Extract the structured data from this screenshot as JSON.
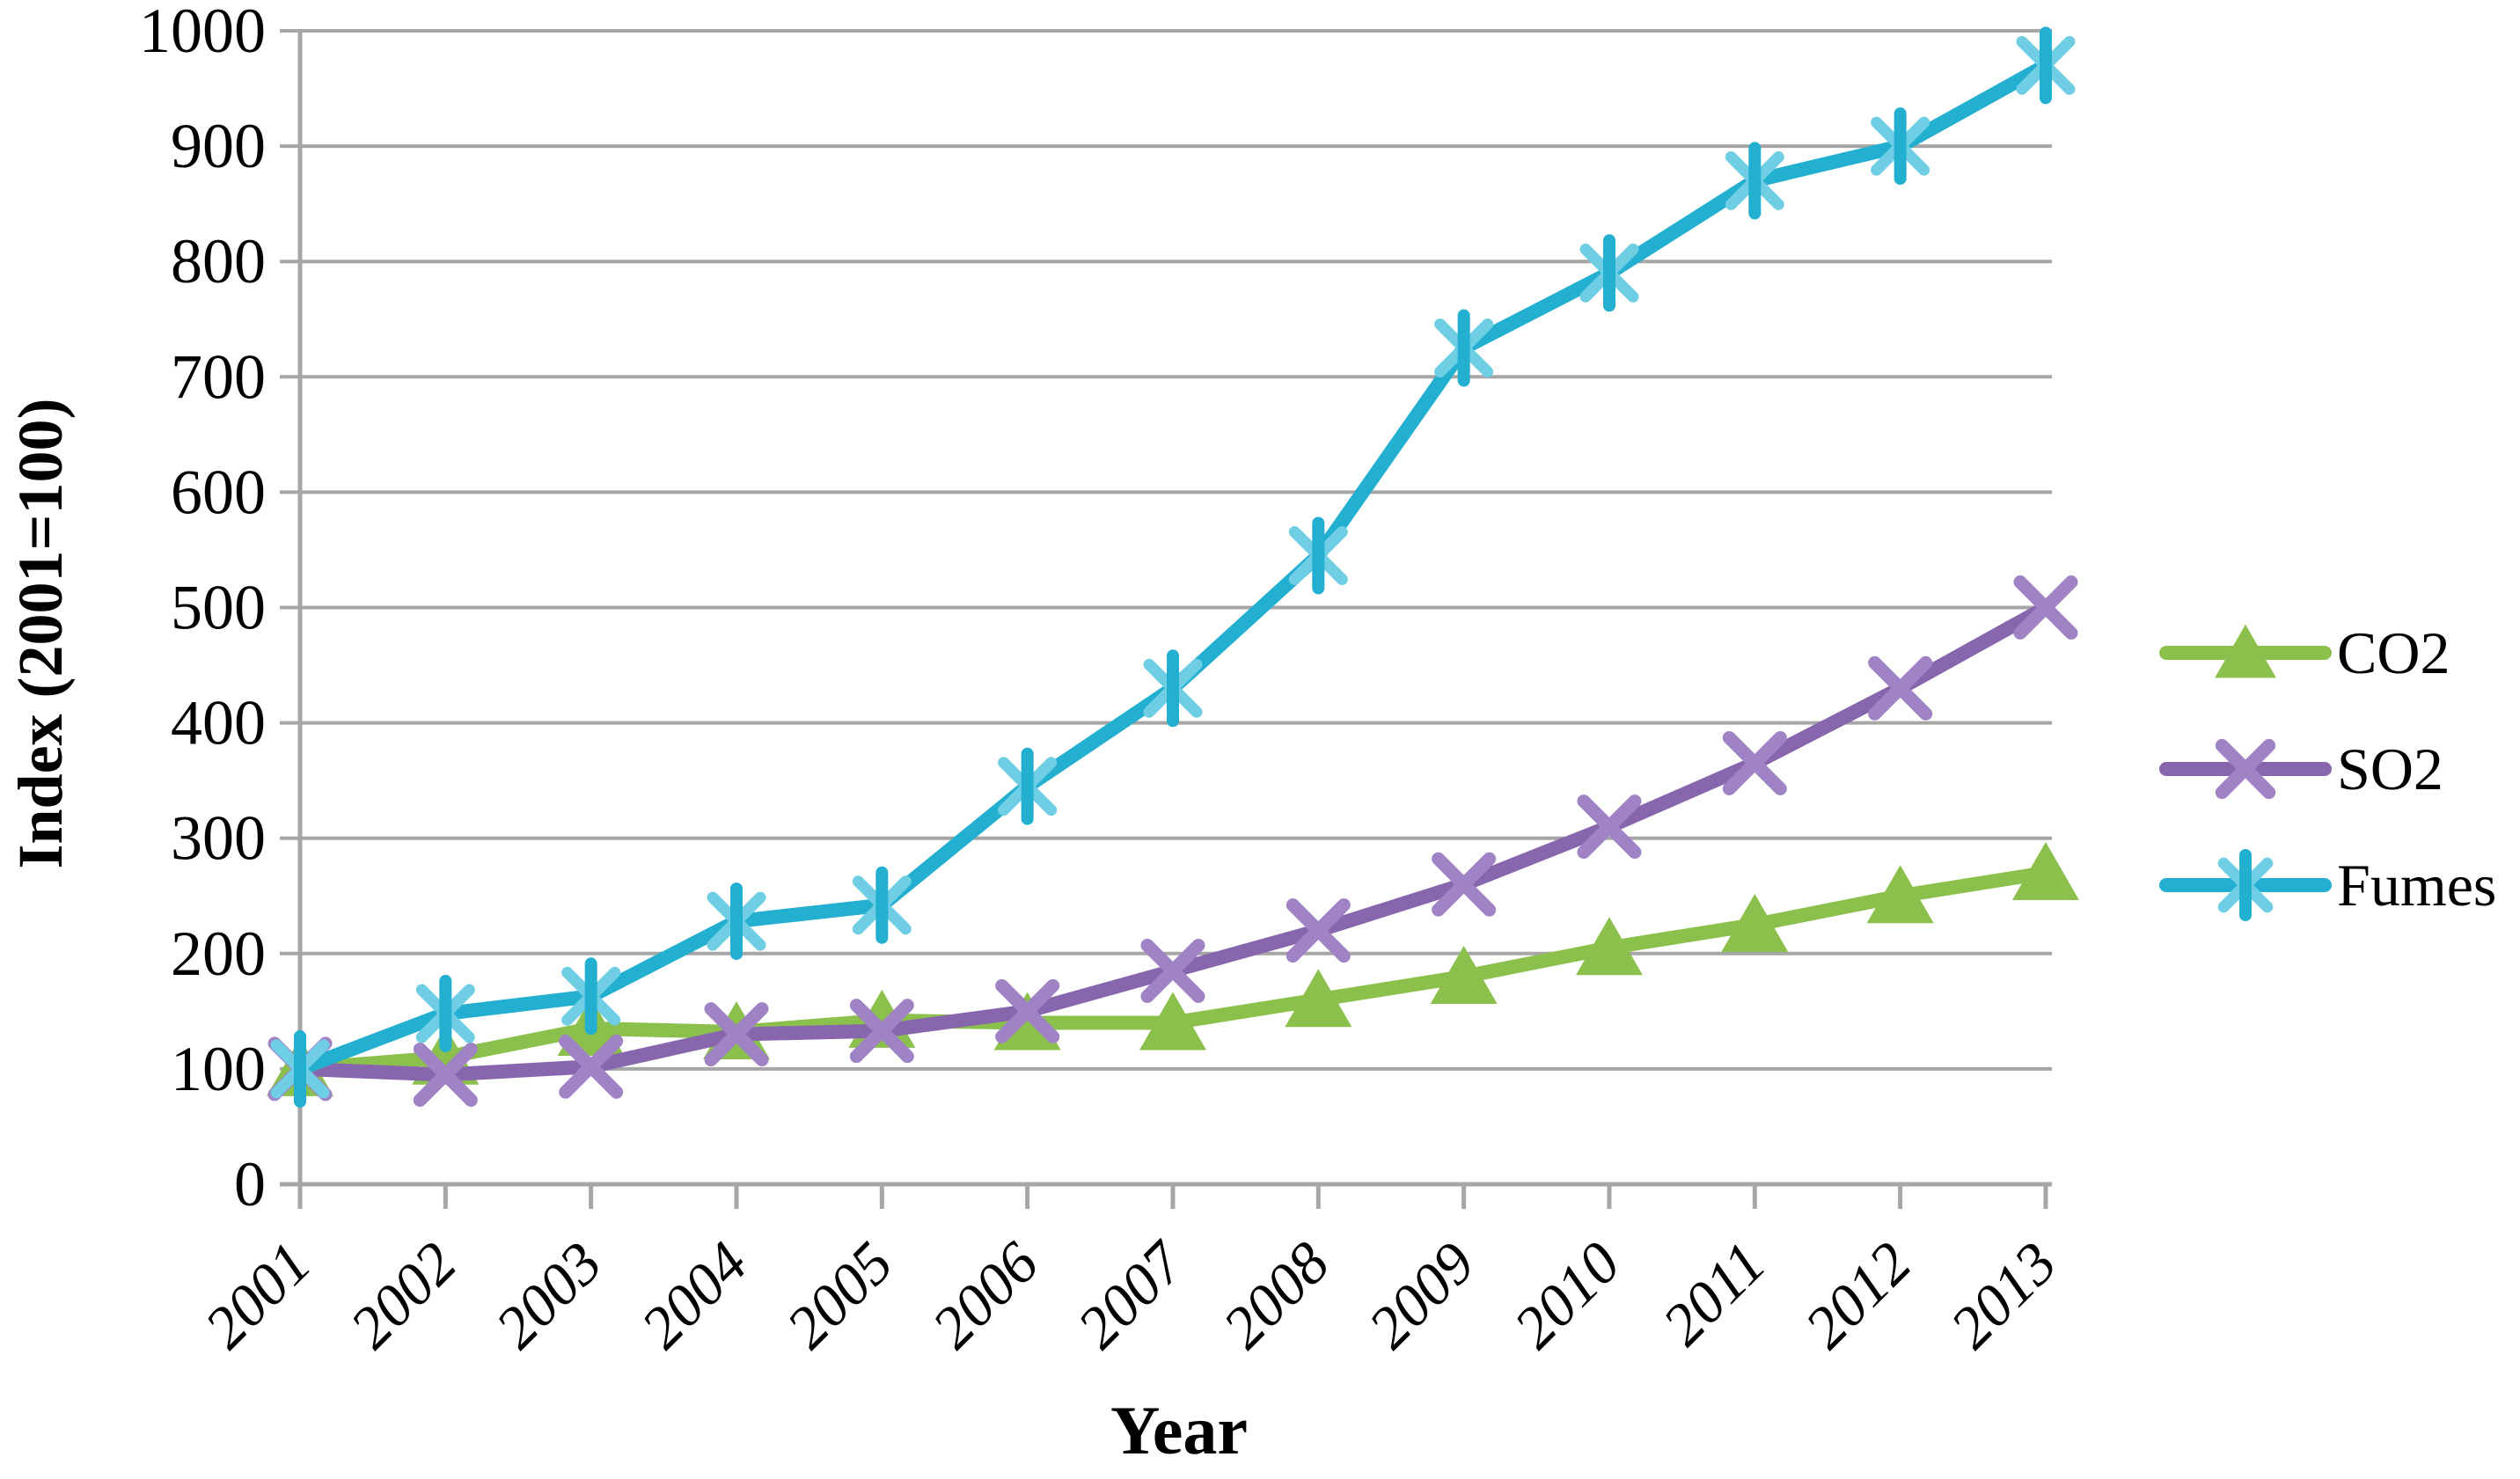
{
  "page": {
    "background": "#FFFFFF"
  },
  "chart_data": {
    "type": "line",
    "title": "",
    "xlabel": "Year",
    "ylabel": "Index (2001=100)",
    "x": [
      "2001",
      "2002",
      "2003",
      "2004",
      "2005",
      "2006",
      "2007",
      "2008",
      "2009",
      "2010",
      "2011",
      "2012",
      "2013"
    ],
    "y_ticks": [
      "0",
      "100",
      "200",
      "300",
      "400",
      "500",
      "600",
      "700",
      "800",
      "900",
      "1000"
    ],
    "ylim": [
      0,
      1000
    ],
    "y_tick_step": 100,
    "grid": "horizontal",
    "legend_position": "right",
    "series": [
      {
        "name": "CO2",
        "color": "#8CC04C",
        "marker": "triangle",
        "marker_color": "#8CC04C",
        "values": [
          100,
          110,
          135,
          132,
          142,
          140,
          140,
          160,
          180,
          205,
          225,
          250,
          270
        ]
      },
      {
        "name": "SO2",
        "color": "#8766AD",
        "marker": "x",
        "marker_color": "#9F83C5",
        "values": [
          100,
          95,
          102,
          130,
          133,
          150,
          185,
          220,
          260,
          310,
          365,
          430,
          500
        ]
      },
      {
        "name": "Fumes",
        "color": "#22AFD0",
        "marker": "asterisk",
        "marker_color": "#6FCEE4",
        "values": [
          100,
          148,
          163,
          228,
          242,
          345,
          430,
          545,
          725,
          790,
          870,
          900,
          970
        ]
      }
    ],
    "colors": {
      "gridline": "#A6A6A6",
      "axis": "#A6A6A6",
      "text": "#000000"
    }
  }
}
